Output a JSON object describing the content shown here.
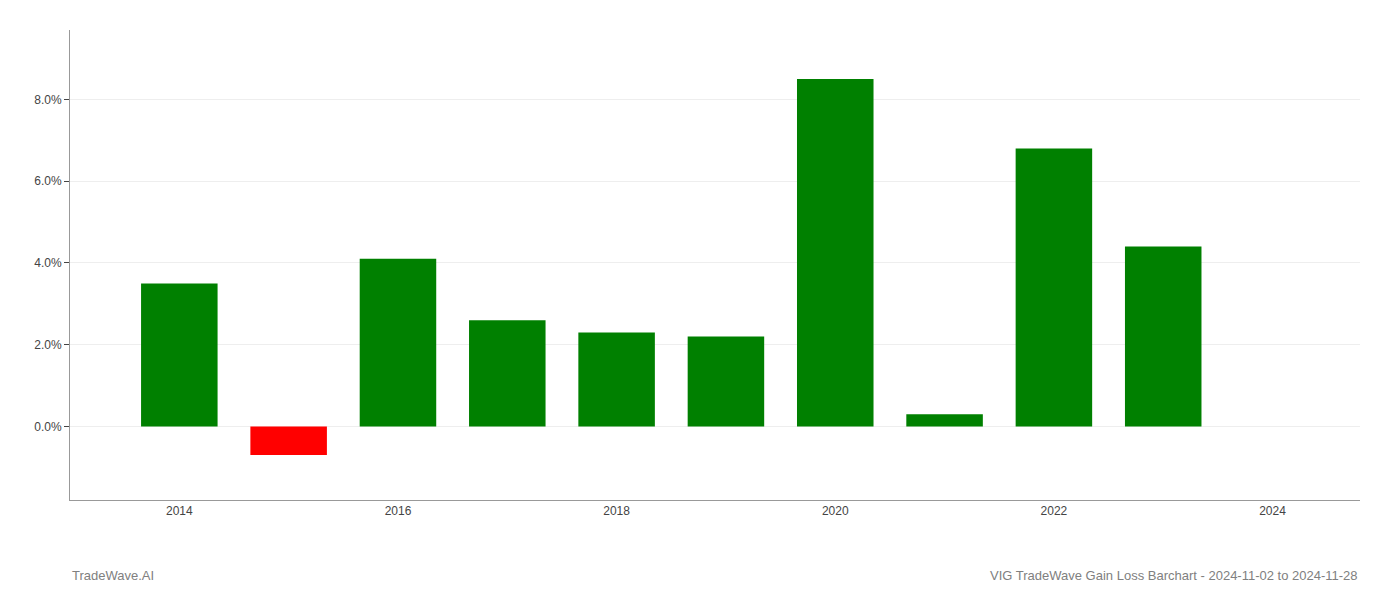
{
  "chart_data": {
    "type": "bar",
    "x": [
      2014,
      2015,
      2016,
      2017,
      2018,
      2019,
      2020,
      2021,
      2022,
      2023
    ],
    "values": [
      0.035,
      -0.007,
      0.041,
      0.026,
      0.023,
      0.022,
      0.085,
      0.003,
      0.068,
      0.044
    ],
    "colors": [
      "#008000",
      "#ff0000",
      "#008000",
      "#008000",
      "#008000",
      "#008000",
      "#008000",
      "#008000",
      "#008000",
      "#008000"
    ],
    "xlim": [
      2013.0,
      2024.8
    ],
    "ylim": [
      -0.018,
      0.097
    ],
    "xticks": [
      2014,
      2016,
      2018,
      2020,
      2022,
      2024
    ],
    "yticks": [
      {
        "value": 0.0,
        "label": "0.0%"
      },
      {
        "value": 0.02,
        "label": "2.0%"
      },
      {
        "value": 0.04,
        "label": "4.0%"
      },
      {
        "value": 0.06,
        "label": "6.0%"
      },
      {
        "value": 0.08,
        "label": "8.0%"
      }
    ],
    "grid": true,
    "annotations": [
      "TradeWave.AI",
      "VIG TradeWave Gain Loss Barchart - 2024-11-02 to 2024-11-28"
    ]
  }
}
